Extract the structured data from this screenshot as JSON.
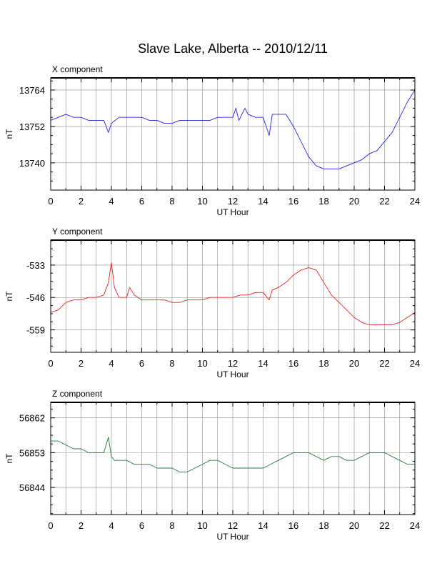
{
  "page": {
    "title": "Slave Lake, Alberta -- 2010/12/11"
  },
  "chart_data": [
    {
      "type": "line",
      "panel_label": "X component",
      "title": "",
      "xlabel": "UT Hour",
      "ylabel": "nT",
      "xlim": [
        0,
        24
      ],
      "ylim": [
        13731,
        13768
      ],
      "x_ticks": [
        0,
        2,
        4,
        6,
        8,
        10,
        12,
        14,
        16,
        18,
        20,
        22,
        24
      ],
      "y_ticks": [
        13740,
        13752,
        13764
      ],
      "grid": true,
      "series": [
        {
          "color": "#2323e6",
          "x": [
            0,
            0.5,
            1,
            1.5,
            2,
            2.5,
            3,
            3.5,
            3.8,
            4,
            4.5,
            5,
            5.5,
            6,
            6.5,
            7,
            7.5,
            8,
            8.5,
            9,
            9.5,
            10,
            10.5,
            11,
            11.5,
            12,
            12.2,
            12.4,
            12.8,
            13,
            13.5,
            14,
            14.4,
            14.6,
            15,
            15.5,
            16,
            16.5,
            17,
            17.5,
            18,
            18.5,
            19,
            19.5,
            20,
            20.5,
            21,
            21.5,
            22,
            22.5,
            23,
            23.5,
            24
          ],
          "y": [
            13754,
            13755,
            13756,
            13755,
            13755,
            13754,
            13754,
            13754,
            13750,
            13753,
            13755,
            13755,
            13755,
            13755,
            13754,
            13754,
            13753,
            13753,
            13754,
            13754,
            13754,
            13754,
            13754,
            13755,
            13755,
            13755,
            13758,
            13754,
            13758,
            13756,
            13755,
            13755,
            13749,
            13756,
            13756,
            13756,
            13752,
            13747,
            13742,
            13739,
            13738,
            13738,
            13738,
            13739,
            13740,
            13741,
            13743,
            13744,
            13747,
            13750,
            13755,
            13760,
            13764
          ]
        }
      ]
    },
    {
      "type": "line",
      "panel_label": "Y component",
      "title": "",
      "xlabel": "UT Hour",
      "ylabel": "nT",
      "xlim": [
        0,
        24
      ],
      "ylim": [
        -568,
        -523
      ],
      "x_ticks": [
        0,
        2,
        4,
        6,
        8,
        10,
        12,
        14,
        16,
        18,
        20,
        22,
        24
      ],
      "y_ticks": [
        -533,
        -546,
        -559
      ],
      "grid": true,
      "series": [
        {
          "color": "#e62323",
          "x": [
            0,
            0.5,
            1,
            1.5,
            2,
            2.5,
            3,
            3.5,
            3.8,
            4,
            4.2,
            4.5,
            5,
            5.2,
            5.5,
            6,
            6.5,
            7,
            7.5,
            8,
            8.5,
            9,
            9.5,
            10,
            10.5,
            11,
            11.5,
            12,
            12.5,
            13,
            13.5,
            14,
            14.4,
            14.6,
            15,
            15.5,
            16,
            16.5,
            17,
            17.5,
            18,
            18.5,
            19,
            19.5,
            20,
            20.5,
            21,
            21.5,
            22,
            22.5,
            23,
            23.5,
            24
          ],
          "y": [
            -552,
            -551,
            -548,
            -547,
            -547,
            -546,
            -546,
            -545,
            -540,
            -532,
            -542,
            -546,
            -546,
            -542,
            -545,
            -547,
            -547,
            -547,
            -547,
            -548,
            -548,
            -547,
            -547,
            -547,
            -546,
            -546,
            -546,
            -546,
            -545,
            -545,
            -544,
            -544,
            -547,
            -543,
            -542,
            -540,
            -537,
            -535,
            -534,
            -535,
            -540,
            -545,
            -548,
            -551,
            -554,
            -556,
            -557,
            -557,
            -557,
            -557,
            -556,
            -554,
            -552
          ]
        }
      ]
    },
    {
      "type": "line",
      "panel_label": "Z component",
      "title": "",
      "xlabel": "UT Hour",
      "ylabel": "nT",
      "xlim": [
        0,
        24
      ],
      "ylim": [
        56837,
        56866
      ],
      "x_ticks": [
        0,
        2,
        4,
        6,
        8,
        10,
        12,
        14,
        16,
        18,
        20,
        22,
        24
      ],
      "y_ticks": [
        56862,
        56853,
        56844
      ],
      "grid": true,
      "series": [
        {
          "color": "#237d3c",
          "x": [
            0,
            0.5,
            1,
            1.5,
            2,
            2.5,
            3,
            3.5,
            3.8,
            4,
            4.2,
            4.5,
            5,
            5.5,
            6,
            6.5,
            7,
            7.5,
            8,
            8.5,
            9,
            9.5,
            10,
            10.5,
            11,
            11.5,
            12,
            12.5,
            13,
            13.5,
            14,
            14.5,
            15,
            15.5,
            16,
            16.5,
            17,
            17.5,
            18,
            18.5,
            19,
            19.5,
            20,
            20.5,
            21,
            21.5,
            22,
            22.5,
            23,
            23.5,
            24
          ],
          "y": [
            56856,
            56856,
            56855,
            56854,
            56854,
            56853,
            56853,
            56853,
            56857,
            56852,
            56851,
            56851,
            56851,
            56850,
            56850,
            56850,
            56849,
            56849,
            56849,
            56848,
            56848,
            56849,
            56850,
            56851,
            56851,
            56850,
            56849,
            56849,
            56849,
            56849,
            56849,
            56850,
            56851,
            56852,
            56853,
            56853,
            56853,
            56852,
            56851,
            56852,
            56852,
            56851,
            56851,
            56852,
            56853,
            56853,
            56853,
            56852,
            56851,
            56850,
            56850
          ]
        }
      ]
    }
  ]
}
